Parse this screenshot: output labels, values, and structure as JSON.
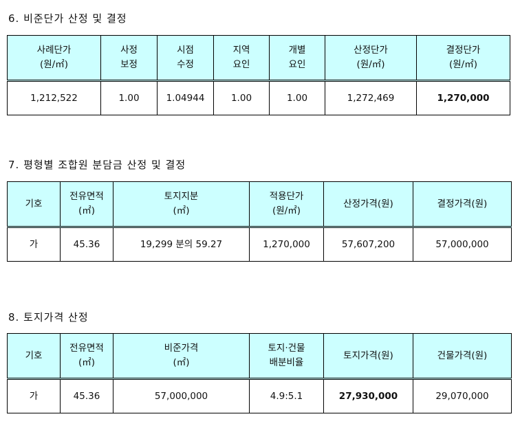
{
  "section6": {
    "title": "6. 비준단가 산정 및 결정",
    "headers": [
      [
        "사례단가",
        "(원/㎡)"
      ],
      [
        "사정",
        "보정"
      ],
      [
        "시점",
        "수정"
      ],
      [
        "지역",
        "요인"
      ],
      [
        "개별",
        "요인"
      ],
      [
        "산정단가",
        "(원/㎡)"
      ],
      [
        "결정단가",
        "(원/㎡)"
      ]
    ],
    "row": [
      "1,212,522",
      "1.00",
      "1.04944",
      "1.00",
      "1.00",
      "1,272,469",
      "1,270,000"
    ]
  },
  "section7": {
    "title": "7. 평형별 조합원 분담금 산정 및 결정",
    "headers": [
      [
        "기호"
      ],
      [
        "전유면적",
        "(㎡)"
      ],
      [
        "토지지분",
        "(㎡)"
      ],
      [
        "적용단가",
        "(원/㎡)"
      ],
      [
        "산정가격(원)"
      ],
      [
        "결정가격(원)"
      ]
    ],
    "row": [
      "가",
      "45.36",
      "19,299 분의 59.27",
      "1,270,000",
      "57,607,200",
      "57,000,000"
    ]
  },
  "section8": {
    "title": "8. 토지가격 산정",
    "headers": [
      [
        "기호"
      ],
      [
        "전유면적",
        "(㎡)"
      ],
      [
        "비준가격",
        "(㎡)"
      ],
      [
        "토지·건물",
        "배분비율"
      ],
      [
        "토지가격(원)"
      ],
      [
        "건물가격(원)"
      ]
    ],
    "row": [
      "가",
      "45.36",
      "57,000,000",
      "4.9:5.1",
      "27,930,000",
      "29,070,000"
    ]
  },
  "colors": {
    "header_bg": "#ccffff",
    "border": "#000000"
  }
}
